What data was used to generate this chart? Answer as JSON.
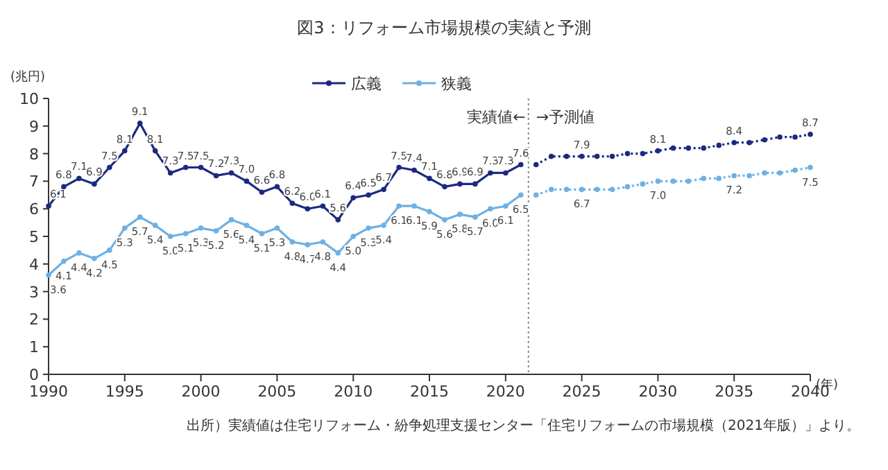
{
  "chart_data": {
    "type": "line",
    "title": "図3：リフォーム市場規模の実績と予測",
    "ylabel": "(兆円)",
    "xlabel": "(年)",
    "xlim": [
      1990,
      2040
    ],
    "xticks": [
      1990,
      1995,
      2000,
      2005,
      2010,
      2015,
      2020,
      2025,
      2030,
      2035,
      2040
    ],
    "ylim": [
      0,
      10
    ],
    "yticks": [
      0,
      1,
      2,
      3,
      4,
      5,
      6,
      7,
      8,
      9,
      10
    ],
    "grid": false,
    "legend": "top",
    "marker": "circle",
    "series": [
      {
        "name": "広義",
        "color": "#1b2a80",
        "line_style": "solid",
        "x": [
          1990,
          1991,
          1992,
          1993,
          1994,
          1995,
          1996,
          1997,
          1998,
          1999,
          2000,
          2001,
          2002,
          2003,
          2004,
          2005,
          2006,
          2007,
          2008,
          2009,
          2010,
          2011,
          2012,
          2013,
          2014,
          2015,
          2016,
          2017,
          2018,
          2019,
          2020,
          2021
        ],
        "values": [
          6.1,
          6.8,
          7.1,
          6.9,
          7.5,
          8.1,
          9.1,
          8.1,
          7.3,
          7.5,
          7.5,
          7.2,
          7.3,
          7.0,
          6.6,
          6.8,
          6.2,
          6.0,
          6.1,
          5.6,
          6.4,
          6.5,
          6.7,
          7.5,
          7.4,
          7.1,
          6.8,
          6.9,
          6.9,
          7.3,
          7.3,
          7.6
        ],
        "value_labels": [
          "6.1",
          "6.8",
          "7.1",
          "6.9",
          "7.5",
          "8.1",
          "9.1",
          "8.1",
          "7.3",
          "7.5",
          "7.5",
          "7.2",
          "7.3",
          "7.0",
          "6.6",
          "6.8",
          "6.2",
          "6.0",
          "6.1",
          "5.6",
          "6.4",
          "6.5",
          "6.7",
          "7.5",
          "7.4",
          "7.1",
          "6.8",
          "6.9",
          "6.9",
          "7.3",
          "7.3",
          "7.6"
        ]
      },
      {
        "name": "狭義",
        "color": "#6db0e4",
        "line_style": "solid",
        "x": [
          1990,
          1991,
          1992,
          1993,
          1994,
          1995,
          1996,
          1997,
          1998,
          1999,
          2000,
          2001,
          2002,
          2003,
          2004,
          2005,
          2006,
          2007,
          2008,
          2009,
          2010,
          2011,
          2012,
          2013,
          2014,
          2015,
          2016,
          2017,
          2018,
          2019,
          2020,
          2021
        ],
        "values": [
          3.6,
          4.1,
          4.4,
          4.2,
          4.5,
          5.3,
          5.7,
          5.4,
          5.0,
          5.1,
          5.3,
          5.2,
          5.6,
          5.4,
          5.1,
          5.3,
          4.8,
          4.7,
          4.8,
          4.4,
          5.0,
          5.3,
          5.4,
          6.1,
          6.1,
          5.9,
          5.6,
          5.8,
          5.7,
          6.0,
          6.1,
          6.5
        ],
        "value_labels": [
          "3.6",
          "4.1",
          "4.4",
          "4.2",
          "4.5",
          "5.3",
          "5.7",
          "5.4",
          "5.0",
          "5.1",
          "5.3",
          "5.2",
          "5.6",
          "5.4",
          "5.1",
          "5.3",
          "4.8",
          "4.7",
          "4.8",
          "4.4",
          "5.0",
          "5.3",
          "5.4",
          "6.1",
          "6.1",
          "5.9",
          "5.6",
          "5.8",
          "5.7",
          "6.0",
          "6.1",
          "6.5"
        ]
      },
      {
        "color": "#1b2a80",
        "line_style": "dotted",
        "x": [
          2022,
          2023,
          2024,
          2025,
          2026,
          2027,
          2028,
          2029,
          2030,
          2031,
          2032,
          2033,
          2034,
          2035,
          2036,
          2037,
          2038,
          2039,
          2040
        ],
        "values": [
          7.6,
          7.9,
          7.9,
          7.9,
          7.9,
          7.9,
          8.0,
          8.0,
          8.1,
          8.2,
          8.2,
          8.2,
          8.3,
          8.4,
          8.4,
          8.5,
          8.6,
          8.6,
          8.7
        ],
        "value_labels": [
          null,
          null,
          null,
          "7.9",
          null,
          null,
          null,
          null,
          "8.1",
          null,
          null,
          null,
          null,
          "8.4",
          null,
          null,
          null,
          null,
          "8.7"
        ]
      },
      {
        "color": "#6db0e4",
        "line_style": "dotted",
        "x": [
          2022,
          2023,
          2024,
          2025,
          2026,
          2027,
          2028,
          2029,
          2030,
          2031,
          2032,
          2033,
          2034,
          2035,
          2036,
          2037,
          2038,
          2039,
          2040
        ],
        "values": [
          6.5,
          6.7,
          6.7,
          6.7,
          6.7,
          6.7,
          6.8,
          6.9,
          7.0,
          7.0,
          7.0,
          7.1,
          7.1,
          7.2,
          7.2,
          7.3,
          7.3,
          7.4,
          7.5
        ],
        "value_labels": [
          null,
          null,
          null,
          "6.7",
          null,
          null,
          null,
          null,
          "7.0",
          null,
          null,
          null,
          null,
          "7.2",
          null,
          null,
          null,
          null,
          "7.5"
        ]
      }
    ],
    "ref_lines": [
      {
        "axis": "x",
        "value": 2021.5,
        "label": "実績値←",
        "line_style": "dotted",
        "color": "#888888"
      }
    ],
    "annotations": [
      "→予測値",
      "出所）実績値は住宅リフォーム・紛争処理支援センター「住宅リフォームの市場規模（2021年版）」より。"
    ]
  }
}
